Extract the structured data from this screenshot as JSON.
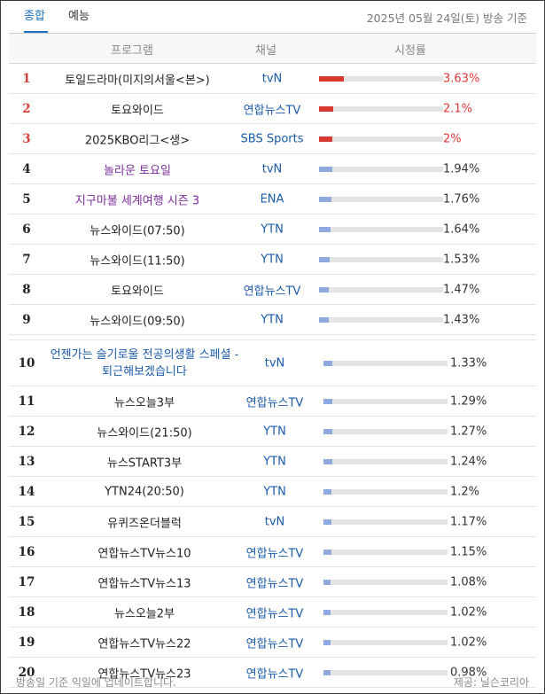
{
  "tabs": [
    {
      "label": "종합",
      "active": true
    },
    {
      "label": "예능",
      "active": false
    }
  ],
  "date_label": "2025년 05월 24일(토) 방송 기준",
  "columns": {
    "program": "프로그램",
    "channel": "채널",
    "rating": "시청률"
  },
  "rows": [
    {
      "rank": "1",
      "program": "토일드라마(미지의서울<본>)",
      "channel": "tvN",
      "rating": "3.63%",
      "value": 3.63
    },
    {
      "rank": "2",
      "program": "토요와이드",
      "channel": "연합뉴스TV",
      "rating": "2.1%",
      "value": 2.1
    },
    {
      "rank": "3",
      "program": "2025KBO리그<생>",
      "channel": "SBS Sports",
      "rating": "2%",
      "value": 2.0
    },
    {
      "rank": "4",
      "program": "놀라운 토요일",
      "channel": "tvN",
      "rating": "1.94%",
      "value": 1.94
    },
    {
      "rank": "5",
      "program": "지구마불 세계여행 시즌 3",
      "channel": "ENA",
      "rating": "1.76%",
      "value": 1.76
    },
    {
      "rank": "6",
      "program": "뉴스와이드(07:50)",
      "channel": "YTN",
      "rating": "1.64%",
      "value": 1.64
    },
    {
      "rank": "7",
      "program": "뉴스와이드(11:50)",
      "channel": "YTN",
      "rating": "1.53%",
      "value": 1.53
    },
    {
      "rank": "8",
      "program": "토요와이드",
      "channel": "연합뉴스TV",
      "rating": "1.47%",
      "value": 1.47
    },
    {
      "rank": "9",
      "program": "뉴스와이드(09:50)",
      "channel": "YTN",
      "rating": "1.43%",
      "value": 1.43
    },
    {
      "rank": "10",
      "program": "언젠가는 슬기로울 전공의생활 스페셜 - 퇴근해보겠습니다",
      "channel": "tvN",
      "rating": "1.33%",
      "value": 1.33
    },
    {
      "rank": "11",
      "program": "뉴스오늘3부",
      "channel": "연합뉴스TV",
      "rating": "1.29%",
      "value": 1.29
    },
    {
      "rank": "12",
      "program": "뉴스와이드(21:50)",
      "channel": "YTN",
      "rating": "1.27%",
      "value": 1.27
    },
    {
      "rank": "13",
      "program": "뉴스START3부",
      "channel": "YTN",
      "rating": "1.24%",
      "value": 1.24
    },
    {
      "rank": "14",
      "program": "YTN24(20:50)",
      "channel": "YTN",
      "rating": "1.2%",
      "value": 1.2
    },
    {
      "rank": "15",
      "program": "유퀴즈온더블럭",
      "channel": "tvN",
      "rating": "1.17%",
      "value": 1.17
    },
    {
      "rank": "16",
      "program": "연합뉴스TV뉴스10",
      "channel": "연합뉴스TV",
      "rating": "1.15%",
      "value": 1.15
    },
    {
      "rank": "17",
      "program": "연합뉴스TV뉴스13",
      "channel": "연합뉴스TV",
      "rating": "1.08%",
      "value": 1.08
    },
    {
      "rank": "18",
      "program": "뉴스오늘2부",
      "channel": "연합뉴스TV",
      "rating": "1.02%",
      "value": 1.02
    },
    {
      "rank": "19",
      "program": "연합뉴스TV뉴스22",
      "channel": "연합뉴스TV",
      "rating": "1.02%",
      "value": 1.02
    },
    {
      "rank": "20",
      "program": "연합뉴스TV뉴스23",
      "channel": "연합뉴스TV",
      "rating": "0.98%",
      "value": 0.98
    }
  ],
  "footer": {
    "note": "방송일 기준 익일에 업데이트합니다.",
    "source": "제공: 닐슨코리아"
  },
  "colors": {
    "accent": "#1a73c7",
    "top_rank": "#d9403a",
    "channel": "#1a5aa8",
    "program_highlight": "#7b2d9a",
    "bar_top": "#d63a2f",
    "bar": "#8fa9de"
  }
}
